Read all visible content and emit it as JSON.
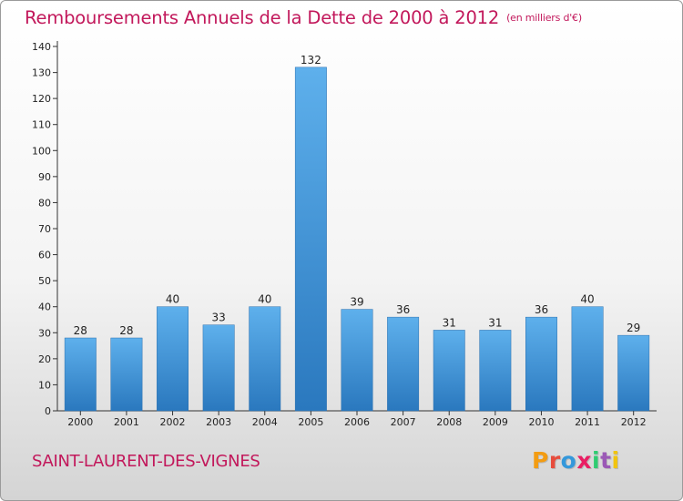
{
  "header": {
    "title": "Remboursements Annuels de la Dette de 2000 à 2012",
    "unit": "(en milliers d'€)"
  },
  "footer": {
    "commune": "SAINT-LAURENT-DES-VIGNES",
    "logo_letters": [
      "P",
      "r",
      "o",
      "x",
      "i",
      "t",
      "i"
    ],
    "logo_colors": [
      "#f39c12",
      "#e74c3c",
      "#3498db",
      "#e91e63",
      "#2ecc71",
      "#9b59b6",
      "#f1c40f"
    ]
  },
  "chart_data": {
    "type": "bar",
    "title": "Remboursements Annuels de la Dette de 2000 à 2012",
    "categories": [
      "2000",
      "2001",
      "2002",
      "2003",
      "2004",
      "2005",
      "2006",
      "2007",
      "2008",
      "2009",
      "2010",
      "2011",
      "2012"
    ],
    "values": [
      28,
      28,
      40,
      33,
      40,
      132,
      39,
      36,
      31,
      31,
      36,
      40,
      29
    ],
    "ylim": [
      0,
      140
    ],
    "yticks": [
      0,
      10,
      20,
      30,
      40,
      50,
      60,
      70,
      80,
      90,
      100,
      110,
      120,
      130,
      140
    ],
    "grid": false,
    "bar_color": "#3d8fd6"
  }
}
